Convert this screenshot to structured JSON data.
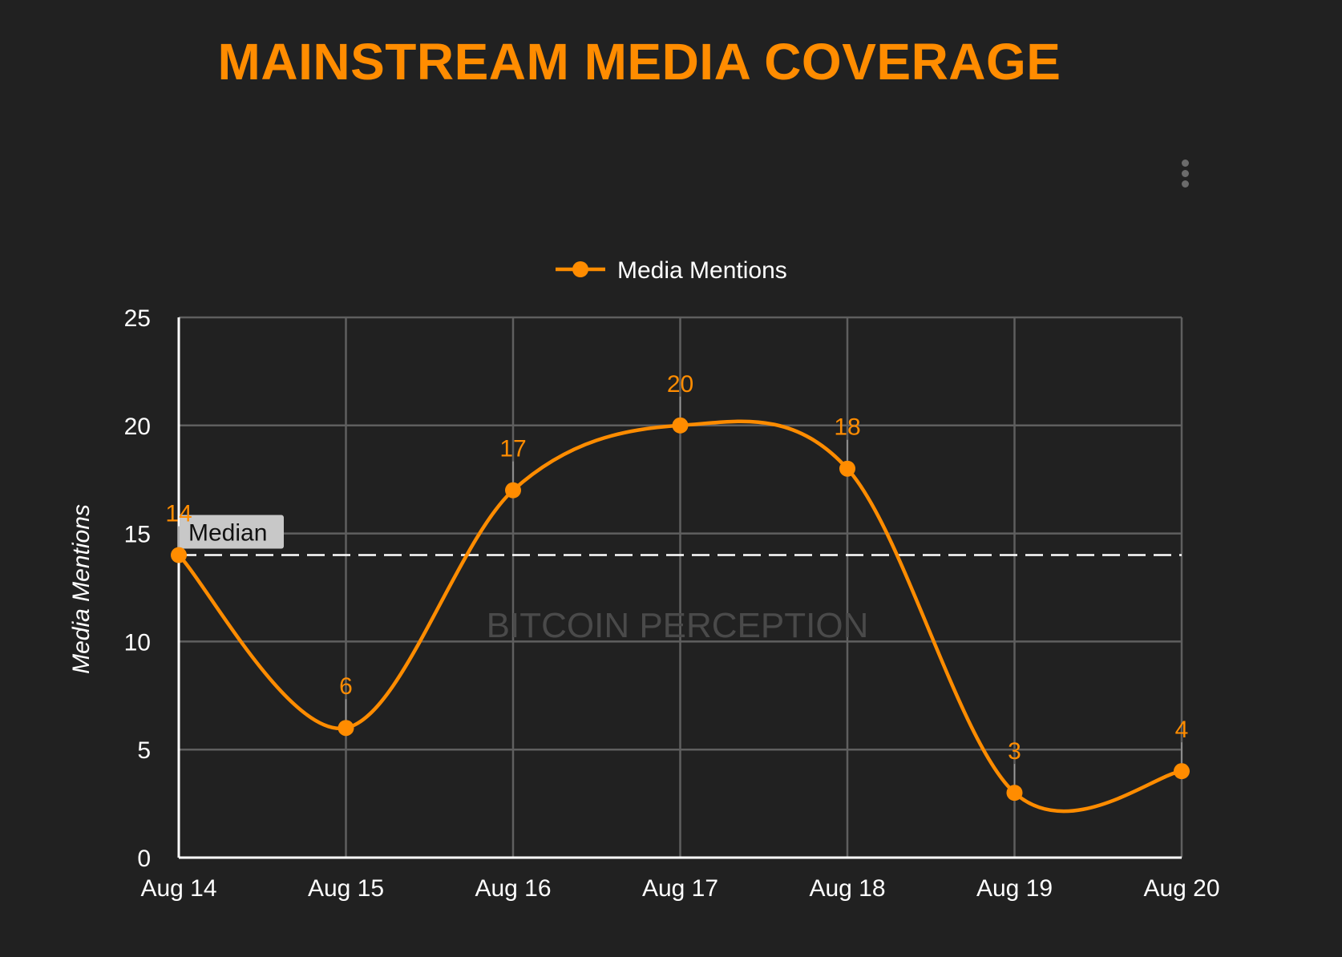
{
  "page": {
    "title": "MAINSTREAM MEDIA COVERAGE",
    "menu_icon": "more-vert-icon"
  },
  "chart_data": {
    "type": "line",
    "title": "MAINSTREAM MEDIA COVERAGE",
    "xlabel": "",
    "ylabel": "Media Mentions",
    "categories": [
      "Aug 14",
      "Aug 15",
      "Aug 16",
      "Aug 17",
      "Aug 18",
      "Aug 19",
      "Aug 20"
    ],
    "series": [
      {
        "name": "Media Mentions",
        "values": [
          14,
          6,
          17,
          20,
          18,
          3,
          4
        ],
        "color": "#ff8c00"
      }
    ],
    "ylim": [
      0,
      25
    ],
    "yticks": [
      0,
      5,
      10,
      15,
      20,
      25
    ],
    "grid": true,
    "smooth": true,
    "data_labels": true,
    "legend": "top-center",
    "reference_line": {
      "label": "Median",
      "value": 14,
      "style": "dashed",
      "color": "#ffffff"
    },
    "watermark": "BITCOIN PERCEPTION",
    "colors": {
      "background": "#212121",
      "grid": "#5f5f5f",
      "axis_text": "#ffffff",
      "accent": "#ff8c00"
    }
  }
}
